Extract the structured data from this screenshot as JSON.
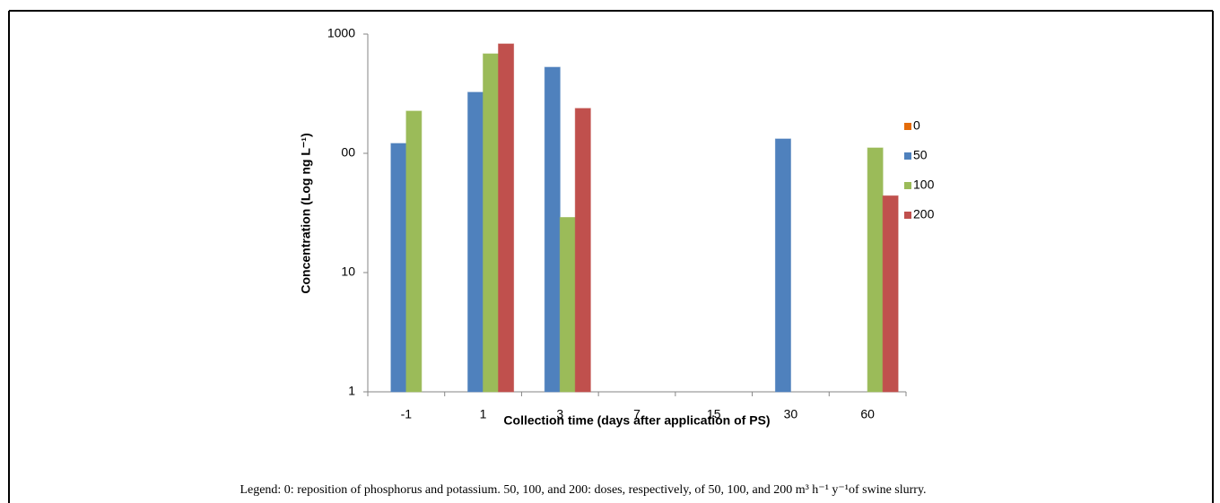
{
  "chart_data": {
    "type": "bar",
    "ylabel": "Concentration (Log ng L⁻¹)",
    "xlabel": "Collection time (days after application of PS)",
    "categories": [
      "-1",
      "1",
      "3",
      "7",
      "15",
      "30",
      "60"
    ],
    "series": [
      {
        "name": "0",
        "color": "#e46c0a",
        "values": [
          null,
          null,
          null,
          null,
          null,
          null,
          null
        ]
      },
      {
        "name": "50",
        "color": "#4f81bd",
        "values": [
          121,
          325,
          527,
          null,
          null,
          132,
          null
        ]
      },
      {
        "name": "100",
        "color": "#9bbb59",
        "values": [
          226,
          683,
          29,
          null,
          null,
          null,
          111
        ]
      },
      {
        "name": "200",
        "color": "#c0504d",
        "values": [
          null,
          827,
          238,
          null,
          null,
          null,
          44
        ]
      }
    ],
    "log_scale": true,
    "ylim": [
      1,
      1000
    ],
    "yticks": [
      1,
      10,
      {
        "value": 100,
        "label": "00"
      },
      1000
    ],
    "grid": false,
    "legend": "right"
  },
  "caption": "Legend: 0: reposition of phosphorus and potassium. 50, 100, and 200: doses, respectively, of 50, 100, and 200 m³ h⁻¹ y⁻¹of swine slurry."
}
